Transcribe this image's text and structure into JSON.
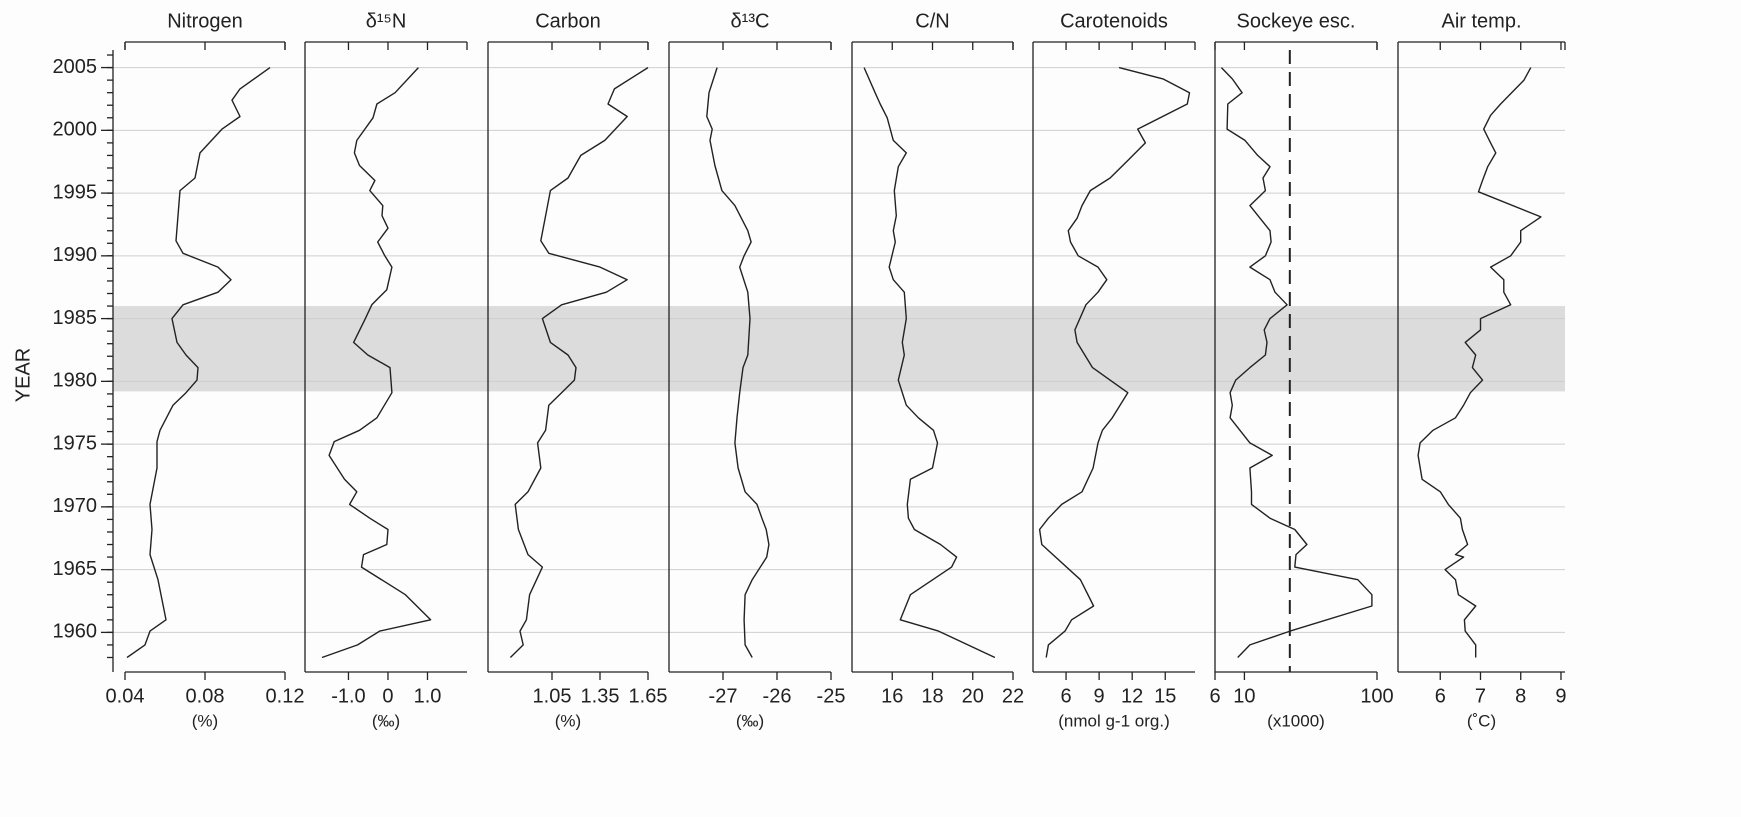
{
  "chart_data": [
    {
      "type": "line",
      "title": "Nitrogen",
      "xlabel": "(%)",
      "ylabel": "YEAR",
      "ylim": [
        1957.8,
        2006.4
      ],
      "yticks": [
        1960,
        1965,
        1970,
        1975,
        1980,
        1985,
        1990,
        1995,
        2000,
        2005
      ],
      "grid": true,
      "shade": [
        1979.2,
        1986
      ],
      "color": "#222222",
      "xlim": [
        0.04,
        0.12
      ],
      "xticks": [
        0.04,
        0.08,
        0.12
      ],
      "years": [
        2005,
        2003.3,
        2002.4,
        2001.1,
        2000.1,
        1998.2,
        1996.2,
        1995.2,
        1991.2,
        1990.2,
        1989.1,
        1988.1,
        1987.1,
        1986.1,
        1985,
        1983.1,
        1982.1,
        1981.1,
        1980.1,
        1979.1,
        1978.1,
        1976.1,
        1975.2,
        1973.1,
        1970.2,
        1968.2,
        1966.2,
        1964.2,
        1962.6,
        1961,
        1960.1,
        1959,
        1958
      ],
      "values": [
        0.1125,
        0.0975,
        0.0935,
        0.0975,
        0.0885,
        0.0775,
        0.075,
        0.0675,
        0.0655,
        0.069,
        0.0865,
        0.093,
        0.0865,
        0.069,
        0.0635,
        0.066,
        0.0705,
        0.0765,
        0.076,
        0.0705,
        0.064,
        0.0575,
        0.056,
        0.056,
        0.0525,
        0.0535,
        0.0525,
        0.0565,
        0.0585,
        0.0605,
        0.0525,
        0.05,
        0.041
      ]
    },
    {
      "type": "line",
      "title": "δ¹⁵N",
      "xlabel": "(‰)",
      "color": "#222222",
      "xlim": [
        -2.1,
        2.0
      ],
      "xticks": [
        {
          "value": -1,
          "label": "-1.0"
        },
        0,
        {
          "value": 1,
          "label": "1.0"
        }
      ],
      "years": [
        2005,
        2003,
        2002.1,
        2001,
        1999.2,
        1998.2,
        1997.2,
        1996,
        1995.2,
        1994,
        1993.2,
        1992.2,
        1991.1,
        1990,
        1989.1,
        1987.3,
        1986.1,
        1984.9,
        1983.1,
        1982.1,
        1981.1,
        1979.1,
        1977.1,
        1976.1,
        1975.2,
        1974.1,
        1972.2,
        1971.2,
        1970.2,
        1969.1,
        1968.2,
        1967,
        1966.2,
        1965.2,
        1963,
        1961,
        1960.1,
        1959,
        1958
      ],
      "values": [
        0.77,
        0.18,
        -0.28,
        -0.38,
        -0.79,
        -0.85,
        -0.72,
        -0.33,
        -0.46,
        -0.13,
        -0.15,
        0,
        -0.26,
        -0.08,
        0.1,
        -0.03,
        -0.41,
        -0.59,
        -0.87,
        -0.51,
        0.05,
        0.1,
        -0.28,
        -0.72,
        -1.36,
        -1.49,
        -1.1,
        -0.79,
        -0.97,
        -0.46,
        0,
        -0.03,
        -0.62,
        -0.67,
        0.44,
        1.08,
        -0.21,
        -0.77,
        -1.67
      ]
    },
    {
      "type": "line",
      "title": "Carbon",
      "xlabel": "(%)",
      "color": "#222222",
      "xlim": [
        0.65,
        1.65
      ],
      "xticks": [
        1.05,
        1.35,
        1.65
      ],
      "years": [
        2005,
        2003.3,
        2002.1,
        2001.1,
        1999.2,
        1998,
        1996.2,
        1995.2,
        1993.2,
        1991.2,
        1990.2,
        1989.1,
        1988.1,
        1987.1,
        1986.1,
        1985,
        1983.1,
        1982.1,
        1981.1,
        1980.1,
        1979.1,
        1978.1,
        1976.1,
        1975.1,
        1973.1,
        1971.2,
        1970.2,
        1968.2,
        1966.2,
        1965.2,
        1963,
        1961,
        1960.1,
        1959,
        1958
      ],
      "values": [
        1.65,
        1.44,
        1.4,
        1.52,
        1.38,
        1.23,
        1.15,
        1.04,
        1.01,
        0.98,
        1.03,
        1.35,
        1.52,
        1.39,
        1.11,
        0.99,
        1.04,
        1.15,
        1.2,
        1.19,
        1.11,
        1.03,
        1.01,
        0.96,
        0.98,
        0.9,
        0.82,
        0.84,
        0.9,
        0.99,
        0.91,
        0.89,
        0.85,
        0.87,
        0.79
      ]
    },
    {
      "type": "line",
      "title": "δ¹³C",
      "xlabel": "(‰)",
      "color": "#222222",
      "xlim": [
        -28,
        -25
      ],
      "xticks": [
        -27,
        -26,
        -25
      ],
      "years": [
        2005,
        2003,
        2001.1,
        2000.1,
        1999.2,
        1997.2,
        1995.2,
        1994,
        1992,
        1991.1,
        1990,
        1989.1,
        1987.1,
        1985,
        1982.1,
        1981.1,
        1979.1,
        1977.1,
        1975.1,
        1973.1,
        1971.2,
        1970.2,
        1969.1,
        1968.2,
        1967,
        1966,
        1964.2,
        1963,
        1961,
        1959,
        1958
      ],
      "values": [
        -27.11,
        -27.26,
        -27.3,
        -27.2,
        -27.24,
        -27.15,
        -27.02,
        -26.78,
        -26.54,
        -26.48,
        -26.61,
        -26.69,
        -26.54,
        -26.5,
        -26.54,
        -26.63,
        -26.69,
        -26.74,
        -26.78,
        -26.72,
        -26.59,
        -26.37,
        -26.28,
        -26.2,
        -26.15,
        -26.19,
        -26.46,
        -26.59,
        -26.61,
        -26.59,
        -26.46
      ]
    },
    {
      "type": "line",
      "title": "C/N",
      "color": "#222222",
      "xlim": [
        14,
        22
      ],
      "xticks": [
        16,
        18,
        20,
        22
      ],
      "years": [
        2005,
        2003,
        2002.1,
        2001,
        1999.2,
        1998.2,
        1997.1,
        1995.2,
        1993.2,
        1992,
        1991.1,
        1989.1,
        1988.1,
        1987.1,
        1985,
        1983.1,
        1982.1,
        1980.1,
        1978.1,
        1977.1,
        1976.1,
        1975.1,
        1973.1,
        1972.2,
        1970.2,
        1969.1,
        1968.2,
        1967,
        1966,
        1965.2,
        1963,
        1961,
        1960.1,
        1958
      ],
      "values": [
        14.6,
        15.15,
        15.4,
        15.75,
        16.05,
        16.7,
        16.3,
        16.1,
        16.2,
        16.05,
        16.15,
        15.85,
        16.05,
        16.6,
        16.7,
        16.5,
        16.6,
        16.3,
        16.7,
        17.3,
        18.05,
        18.25,
        18.0,
        16.9,
        16.75,
        16.8,
        17.1,
        18.4,
        19.2,
        18.95,
        16.9,
        16.4,
        18.3,
        21.1
      ]
    },
    {
      "type": "line",
      "title": "Carotenoids",
      "xlabel": "(nmol g-1 org.)",
      "color": "#222222",
      "xlim": [
        3,
        17.7
      ],
      "xticks": [
        6,
        9,
        12,
        15
      ],
      "years": [
        2005,
        2004.1,
        2003,
        2002.1,
        2000.1,
        1999,
        1997.6,
        1996.2,
        1995.2,
        1994,
        1993,
        1992,
        1991.1,
        1990,
        1989.1,
        1988.1,
        1987.1,
        1986.1,
        1984.1,
        1983.1,
        1981.1,
        1979.1,
        1977.1,
        1976.1,
        1975.1,
        1973.1,
        1971.2,
        1970.2,
        1969.1,
        1968.2,
        1967,
        1964.2,
        1962.1,
        1961,
        1960.1,
        1959,
        1958
      ],
      "values": [
        10.8,
        14.8,
        17.2,
        17.0,
        12.5,
        13.2,
        11.6,
        10.0,
        8.2,
        7.45,
        7.0,
        6.2,
        6.4,
        7.1,
        8.9,
        9.7,
        8.9,
        7.8,
        6.8,
        7.0,
        8.4,
        11.6,
        10.2,
        9.3,
        8.9,
        8.45,
        7.45,
        5.6,
        4.4,
        3.6,
        3.8,
        7.3,
        8.5,
        6.5,
        5.9,
        4.4,
        4.2
      ]
    },
    {
      "type": "line",
      "title": "Sockeye esc.",
      "xlabel": "(x1000)",
      "color": "#222222",
      "log_x": true,
      "reference_line": 22,
      "xlim": [
        6,
        100
      ],
      "xticks": [
        6,
        10,
        100
      ],
      "years": [
        2005,
        2004.1,
        2003,
        2002.1,
        2000.1,
        1999.2,
        1998,
        1997.1,
        1996.2,
        1995.2,
        1994,
        1993,
        1992,
        1991.1,
        1990,
        1989.1,
        1988.1,
        1987.1,
        1986.1,
        1985,
        1984.1,
        1983.1,
        1982.1,
        1981.1,
        1980.1,
        1979.1,
        1978.1,
        1977.1,
        1975.1,
        1974.1,
        1973.1,
        1971.2,
        1970.2,
        1969.1,
        1968.2,
        1967,
        1966.2,
        1965.2,
        1964.2,
        1963,
        1962.1,
        1960.1,
        1959,
        1958
      ],
      "values": [
        6.7,
        8.1,
        9.6,
        7.5,
        7.4,
        10.1,
        12.6,
        15.6,
        13.8,
        14.4,
        11.0,
        13.1,
        15.6,
        15.9,
        14.4,
        11.0,
        15.6,
        17.0,
        21.0,
        15.6,
        14.1,
        14.8,
        14.4,
        11.0,
        8.6,
        7.8,
        8.1,
        7.8,
        11.0,
        16.2,
        11.0,
        11.3,
        11.3,
        15.6,
        24.0,
        29.6,
        24.5,
        24.0,
        71.7,
        91.6,
        91.6,
        22.1,
        11.0,
        8.9
      ]
    },
    {
      "type": "line",
      "title": "Air temp.",
      "xlabel": "(˚C)",
      "color": "#222222",
      "xlim": [
        4.95,
        9.1
      ],
      "xticks": [
        6,
        7,
        8,
        9
      ],
      "years": [
        2005,
        2004,
        2002.1,
        2001.2,
        2000.1,
        1999,
        1998.2,
        1997.1,
        1996,
        1995.1,
        1993.1,
        1992,
        1991.1,
        1990,
        1989.1,
        1988.1,
        1987.1,
        1986.1,
        1985,
        1984.1,
        1983.1,
        1982.1,
        1981.1,
        1980.1,
        1979.1,
        1978.1,
        1977.1,
        1976.1,
        1975.1,
        1974.1,
        1972.2,
        1971.2,
        1970.2,
        1969.1,
        1968.2,
        1967,
        1966.2,
        1966,
        1965,
        1964.2,
        1963,
        1962.1,
        1961,
        1960.1,
        1959,
        1958
      ],
      "values": [
        8.25,
        8.08,
        7.5,
        7.25,
        7.08,
        7.25,
        7.38,
        7.18,
        7.05,
        6.95,
        8.5,
        8.0,
        8.0,
        7.75,
        7.25,
        7.58,
        7.58,
        7.75,
        7.0,
        7.0,
        6.62,
        6.88,
        6.8,
        7.05,
        6.75,
        6.58,
        6.38,
        5.82,
        5.5,
        5.45,
        5.55,
        6.0,
        6.2,
        6.5,
        6.55,
        6.68,
        6.38,
        6.58,
        6.12,
        6.38,
        6.45,
        6.88,
        6.6,
        6.62,
        6.88,
        6.88
      ]
    }
  ]
}
